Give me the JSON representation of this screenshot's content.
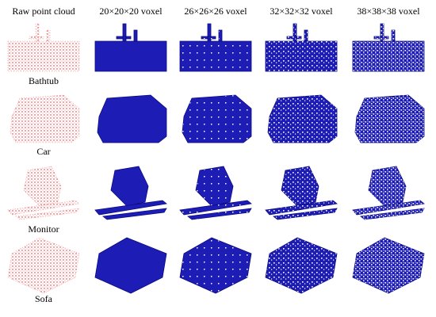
{
  "columns": [
    "Raw point cloud",
    "20×20×20 voxel",
    "26×26×26 voxel",
    "32×32×32 voxel",
    "38×38×38 voxel"
  ],
  "rows": [
    "Bathtub",
    "Car",
    "Monitor",
    "Sofa"
  ]
}
